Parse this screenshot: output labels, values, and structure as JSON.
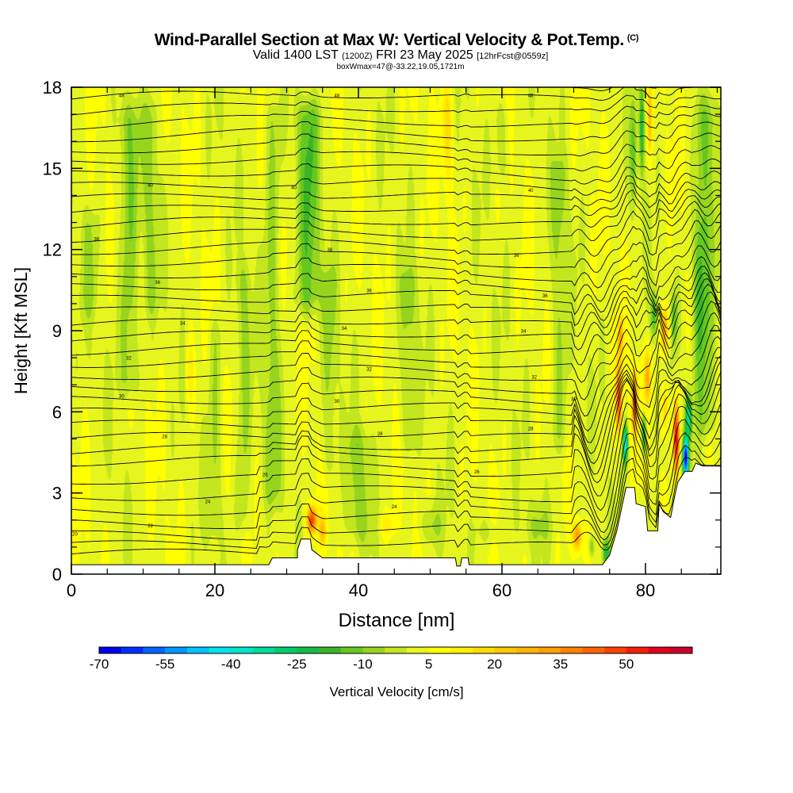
{
  "header": {
    "title": "Wind-Parallel Section at Max W: Vertical Velocity & Pot.Temp.",
    "copyright_mark": "(C)",
    "valid_prefix": "Valid 1400 LST",
    "valid_utc": "(1200Z)",
    "valid_date": "FRI 23 May 2025",
    "forecast_info": "[12hrFcst@0559z]",
    "box_info": "boxWmax=47@-33.22,19.05,1721m"
  },
  "chart_data": {
    "type": "heatmap",
    "title": "Wind-Parallel Section at Max W: Vertical Velocity & Pot.Temp.",
    "xlabel": "Distance [nm]",
    "ylabel": "Height [Kft MSL]",
    "xlim": [
      0,
      90.5
    ],
    "ylim": [
      0,
      18
    ],
    "xticks": [
      0,
      20,
      40,
      60,
      80
    ],
    "yticks": [
      0,
      3,
      6,
      9,
      12,
      15,
      18
    ],
    "xtick_labels": [
      "0",
      "20",
      "40",
      "60",
      "80"
    ],
    "ytick_labels": [
      "0",
      "3",
      "6",
      "9",
      "12",
      "15",
      "18"
    ],
    "background_w": 3,
    "terrain": [
      [
        0,
        0.35
      ],
      [
        27.5,
        0.35
      ],
      [
        28,
        0.6
      ],
      [
        31.5,
        0.6
      ],
      [
        31.5,
        0.9
      ],
      [
        32,
        1.3
      ],
      [
        33.3,
        1.3
      ],
      [
        33.5,
        0.9
      ],
      [
        35,
        0.6
      ],
      [
        53.5,
        0.6
      ],
      [
        53.7,
        0.3
      ],
      [
        54.2,
        0.3
      ],
      [
        54.4,
        0.6
      ],
      [
        55.3,
        0.6
      ],
      [
        55.4,
        0.35
      ],
      [
        74,
        0.35
      ],
      [
        75,
        0.7
      ],
      [
        76,
        1.6
      ],
      [
        76.8,
        2.6
      ],
      [
        77.3,
        3.2
      ],
      [
        78.5,
        3.2
      ],
      [
        78.7,
        2.6
      ],
      [
        80,
        2.5
      ],
      [
        80.3,
        1.6
      ],
      [
        81.7,
        1.6
      ],
      [
        81.9,
        2.6
      ],
      [
        82.5,
        2.3
      ],
      [
        83.5,
        2.1
      ],
      [
        84,
        2.8
      ],
      [
        84.5,
        3.4
      ],
      [
        85.5,
        3.8
      ],
      [
        86.5,
        3.8
      ],
      [
        87,
        4.1
      ],
      [
        88,
        4.0
      ],
      [
        90.5,
        4.0
      ]
    ],
    "w_features": [
      {
        "x": 76.3,
        "z": 6.5,
        "sx": 0.45,
        "sz": 1.3,
        "w": 45
      },
      {
        "x": 77.2,
        "z": 4.8,
        "sx": 0.35,
        "sz": 0.7,
        "w": -45
      },
      {
        "x": 76.5,
        "z": 8.8,
        "sx": 0.4,
        "sz": 0.7,
        "w": 25
      },
      {
        "x": 78.5,
        "z": 6.3,
        "sx": 0.45,
        "sz": 1.2,
        "w": 40
      },
      {
        "x": 79.8,
        "z": 5.2,
        "sx": 0.35,
        "sz": 0.8,
        "w": -30
      },
      {
        "x": 80.3,
        "z": 7.3,
        "sx": 0.45,
        "sz": 1.0,
        "w": 25
      },
      {
        "x": 82.7,
        "z": 9.0,
        "sx": 0.6,
        "sz": 0.9,
        "w": 30
      },
      {
        "x": 82.8,
        "z": 6.2,
        "sx": 0.5,
        "sz": 1.0,
        "w": 20
      },
      {
        "x": 84.3,
        "z": 5.0,
        "sx": 0.45,
        "sz": 1.3,
        "w": 52
      },
      {
        "x": 85.6,
        "z": 4.3,
        "sx": 0.4,
        "sz": 0.7,
        "w": -70
      },
      {
        "x": 86.0,
        "z": 5.8,
        "sx": 0.45,
        "sz": 0.8,
        "w": -35
      },
      {
        "x": 81.2,
        "z": 9.6,
        "sx": 0.5,
        "sz": 0.9,
        "w": -20
      },
      {
        "x": 84.0,
        "z": 9.4,
        "sx": 0.5,
        "sz": 1.0,
        "w": -15
      },
      {
        "x": 79.5,
        "z": 16.5,
        "sx": 0.35,
        "sz": 1.6,
        "w": -25
      },
      {
        "x": 80.6,
        "z": 16.8,
        "sx": 0.35,
        "sz": 1.4,
        "w": 20
      },
      {
        "x": 78.3,
        "z": 15.5,
        "sx": 0.5,
        "sz": 2.0,
        "w": -15
      },
      {
        "x": 87.5,
        "z": 10.5,
        "sx": 0.8,
        "sz": 3.0,
        "w": -18
      },
      {
        "x": 33.5,
        "z": 2.0,
        "sx": 0.7,
        "sz": 0.5,
        "w": 45
      },
      {
        "x": 35.0,
        "z": 1.6,
        "sx": 0.5,
        "sz": 0.5,
        "w": 20
      },
      {
        "x": 70.5,
        "z": 1.4,
        "sx": 0.6,
        "sz": 0.5,
        "w": 32
      },
      {
        "x": 72.5,
        "z": 1.0,
        "sx": 0.4,
        "sz": 0.4,
        "w": -15
      },
      {
        "x": 74.5,
        "z": 0.8,
        "sx": 0.5,
        "sz": 0.5,
        "w": -25
      },
      {
        "x": 52.5,
        "z": 16.5,
        "sx": 0.8,
        "sz": 2.0,
        "w": 15
      },
      {
        "x": 16.5,
        "z": 7.5,
        "sx": 0.6,
        "sz": 1.6,
        "w": 12
      },
      {
        "x": 44.0,
        "z": 1.8,
        "sx": 1.0,
        "sz": 0.4,
        "w": 10
      }
    ],
    "w_bands": [
      {
        "x": 8.0,
        "sx": 1.4,
        "z0": 6.0,
        "z1": 18,
        "w": -12
      },
      {
        "x": 11.0,
        "sx": 1.0,
        "z0": 9.0,
        "z1": 18,
        "w": -9
      },
      {
        "x": 2.5,
        "sx": 1.2,
        "z0": 9.0,
        "z1": 14,
        "w": -7
      },
      {
        "x": 20.0,
        "sx": 1.0,
        "z0": 0.8,
        "z1": 10,
        "w": -8
      },
      {
        "x": 24.0,
        "sx": 1.0,
        "z0": 1.0,
        "z1": 12,
        "w": -9
      },
      {
        "x": 28.0,
        "sx": 1.2,
        "z0": 2.0,
        "z1": 18,
        "w": -10
      },
      {
        "x": 33.0,
        "sx": 1.6,
        "z0": 9.0,
        "z1": 18,
        "w": -16
      },
      {
        "x": 36.0,
        "sx": 1.0,
        "z0": 3.0,
        "z1": 12,
        "w": -8
      },
      {
        "x": 40.0,
        "sx": 1.6,
        "z0": 0.6,
        "z1": 6,
        "w": -10
      },
      {
        "x": 47.0,
        "sx": 1.2,
        "z0": 4.0,
        "z1": 12,
        "w": -9
      },
      {
        "x": 50.0,
        "sx": 1.5,
        "z0": 0.6,
        "z1": 3,
        "w": -10
      },
      {
        "x": 58.0,
        "sx": 1.6,
        "z0": 0.6,
        "z1": 2.5,
        "w": -9
      },
      {
        "x": 65.0,
        "sx": 2.0,
        "z0": 0.6,
        "z1": 3,
        "w": -8
      },
      {
        "x": 68.0,
        "sx": 1.2,
        "z0": 4.0,
        "z1": 16,
        "w": -9
      },
      {
        "x": 60.0,
        "sx": 1.0,
        "z0": 14.0,
        "z1": 18,
        "w": -8
      },
      {
        "x": 88.5,
        "sx": 1.5,
        "z0": 4.5,
        "z1": 18,
        "w": -12
      }
    ],
    "theta_labels": [
      {
        "x": 7,
        "z": 17.7,
        "text": "48"
      },
      {
        "x": 37,
        "z": 17.7,
        "text": "48"
      },
      {
        "x": 64,
        "z": 17.7,
        "text": "48"
      },
      {
        "x": 11,
        "z": 14.4,
        "text": "40"
      },
      {
        "x": 31,
        "z": 14.3,
        "text": "40"
      },
      {
        "x": 64,
        "z": 14.2,
        "text": "40"
      },
      {
        "x": 3.5,
        "z": 12.4,
        "text": "38"
      },
      {
        "x": 36,
        "z": 12.0,
        "text": "38"
      },
      {
        "x": 62,
        "z": 11.8,
        "text": "36"
      },
      {
        "x": 12,
        "z": 10.8,
        "text": "36"
      },
      {
        "x": 41.5,
        "z": 10.5,
        "text": "36"
      },
      {
        "x": 66,
        "z": 10.3,
        "text": "36"
      },
      {
        "x": 15.5,
        "z": 9.3,
        "text": "34"
      },
      {
        "x": 38,
        "z": 9.1,
        "text": "34"
      },
      {
        "x": 63,
        "z": 9.0,
        "text": "34"
      },
      {
        "x": 8,
        "z": 8.0,
        "text": "32"
      },
      {
        "x": 41.5,
        "z": 7.6,
        "text": "32"
      },
      {
        "x": 64.5,
        "z": 7.3,
        "text": "32"
      },
      {
        "x": 7,
        "z": 6.6,
        "text": "30"
      },
      {
        "x": 37,
        "z": 6.4,
        "text": "30"
      },
      {
        "x": 70,
        "z": 6.5,
        "text": "30"
      },
      {
        "x": 13,
        "z": 5.1,
        "text": "28"
      },
      {
        "x": 43,
        "z": 5.2,
        "text": "28"
      },
      {
        "x": 64,
        "z": 5.4,
        "text": "28"
      },
      {
        "x": 27,
        "z": 3.7,
        "text": "26"
      },
      {
        "x": 56.5,
        "z": 3.8,
        "text": "26"
      },
      {
        "x": 19,
        "z": 2.7,
        "text": "24"
      },
      {
        "x": 45,
        "z": 2.5,
        "text": "24"
      },
      {
        "x": 11,
        "z": 1.8,
        "text": "22"
      },
      {
        "x": 0.5,
        "z": 1.5,
        "text": "20"
      }
    ],
    "colorbar": {
      "label": "Vertical Velocity [cm/s]",
      "tick_labels": [
        "-70",
        "-55",
        "-40",
        "-25",
        "-10",
        "5",
        "20",
        "35",
        "50"
      ],
      "tick_values": [
        -70,
        -55,
        -40,
        -25,
        -10,
        5,
        20,
        35,
        50
      ],
      "levels": [
        -70,
        -65,
        -60,
        -55,
        -50,
        -45,
        -40,
        -35,
        -30,
        -25,
        -20,
        -15,
        -10,
        -5,
        0,
        5,
        10,
        15,
        20,
        25,
        30,
        35,
        40,
        45,
        50,
        55,
        60
      ],
      "colors": [
        "#0000ee",
        "#0030ff",
        "#0064ff",
        "#0096ff",
        "#00c4ff",
        "#00e4f0",
        "#00e6c8",
        "#00dc9a",
        "#00ce6e",
        "#14be46",
        "#3cb428",
        "#64c81e",
        "#96d41e",
        "#c3e61e",
        "#e6f51e",
        "#ffff00",
        "#fff000",
        "#ffdc00",
        "#ffc800",
        "#ffb400",
        "#ffa000",
        "#ff8200",
        "#ff6400",
        "#ff4000",
        "#f51e0a",
        "#e1001e",
        "#c8002d"
      ]
    }
  }
}
